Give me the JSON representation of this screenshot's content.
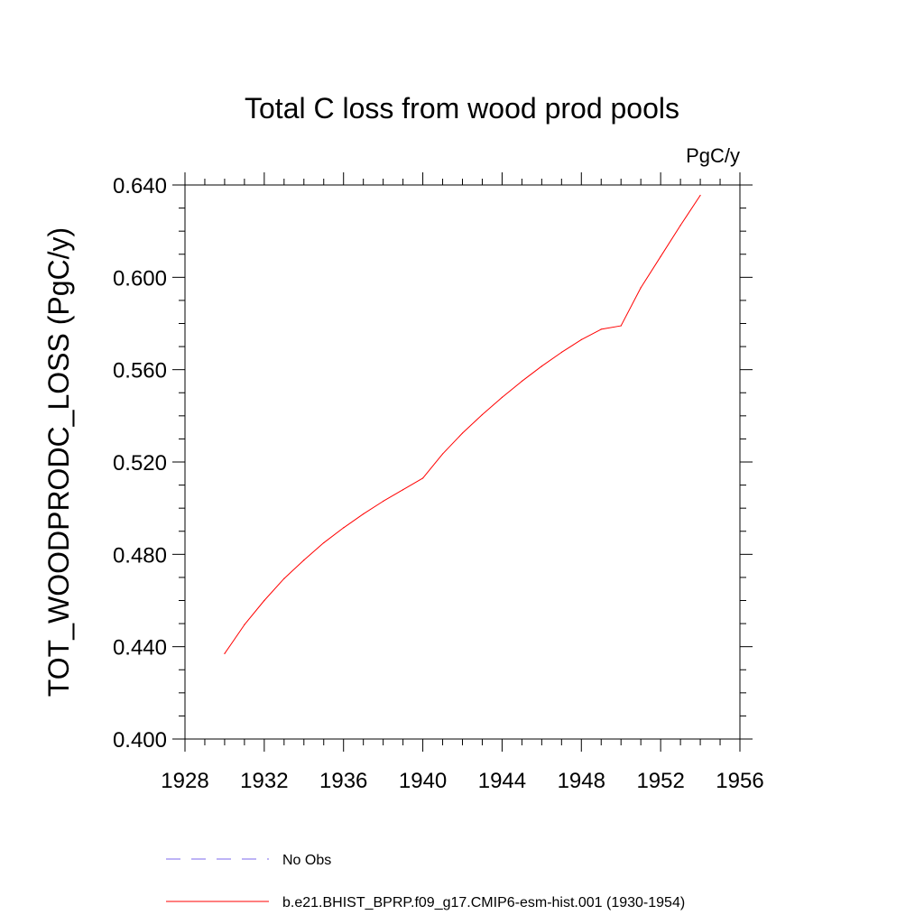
{
  "chart_data": {
    "type": "line",
    "title": "Total C loss from wood prod pools",
    "units_label": "PgC/y",
    "xlabel": "",
    "ylabel": "TOT_WOODPRODC_LOSS  (PgC/y)",
    "xlim": [
      1928,
      1956
    ],
    "ylim": [
      0.4,
      0.64
    ],
    "x_ticks": [
      1928,
      1932,
      1936,
      1940,
      1944,
      1948,
      1952,
      1956
    ],
    "x_tick_labels": [
      "1928",
      "1932",
      "1936",
      "1940",
      "1944",
      "1948",
      "1952",
      "1956"
    ],
    "y_ticks": [
      0.4,
      0.44,
      0.48,
      0.52,
      0.56,
      0.6,
      0.64
    ],
    "y_tick_labels": [
      "0.400",
      "0.440",
      "0.480",
      "0.520",
      "0.560",
      "0.600",
      "0.640"
    ],
    "grid": false,
    "legend_placement": "bottom",
    "series": [
      {
        "name": "No Obs",
        "color": "#7b68ee",
        "style": "dashed",
        "x": [],
        "y": []
      },
      {
        "name": "b.e21.BHIST_BPRP.f09_g17.CMIP6-esm-hist.001 (1930-1954)",
        "color": "#ff0000",
        "style": "solid",
        "x": [
          1930,
          1931,
          1932,
          1933,
          1934,
          1935,
          1936,
          1937,
          1938,
          1939,
          1940,
          1941,
          1942,
          1943,
          1944,
          1945,
          1946,
          1947,
          1948,
          1949,
          1950,
          1951,
          1952,
          1953,
          1954
        ],
        "y": [
          0.437,
          0.4495,
          0.46,
          0.4695,
          0.4775,
          0.485,
          0.4915,
          0.4975,
          0.503,
          0.508,
          0.513,
          0.5235,
          0.5325,
          0.5405,
          0.548,
          0.555,
          0.5615,
          0.5675,
          0.573,
          0.5775,
          0.579,
          0.5955,
          0.609,
          0.6225,
          0.6355
        ]
      }
    ]
  }
}
